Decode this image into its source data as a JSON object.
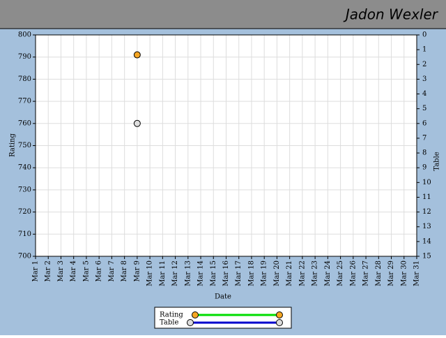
{
  "chart_data": {
    "type": "line",
    "title": "Jadon Wexler",
    "xlabel": "Date",
    "ylabel": "Rating",
    "y2label": "Table",
    "categories": [
      "Mar 1",
      "Mar 2",
      "Mar 3",
      "Mar 4",
      "Mar 5",
      "Mar 6",
      "Mar 7",
      "Mar 8",
      "Mar 9",
      "Mar 10",
      "Mar 11",
      "Mar 12",
      "Mar 13",
      "Mar 14",
      "Mar 15",
      "Mar 16",
      "Mar 17",
      "Mar 18",
      "Mar 19",
      "Mar 20",
      "Mar 21",
      "Mar 22",
      "Mar 23",
      "Mar 24",
      "Mar 25",
      "Mar 26",
      "Mar 27",
      "Mar 28",
      "Mar 29",
      "Mar 30",
      "Mar 31"
    ],
    "series": [
      {
        "name": "Rating",
        "color": "#00dd00",
        "marker_color": "#f5a623",
        "axis": "y",
        "values": [
          null,
          null,
          null,
          null,
          null,
          null,
          null,
          null,
          791,
          null,
          null,
          null,
          null,
          null,
          null,
          null,
          null,
          null,
          null,
          null,
          null,
          null,
          null,
          null,
          null,
          null,
          null,
          null,
          null,
          null,
          null
        ]
      },
      {
        "name": "Table",
        "color": "#0000cc",
        "marker_color": "#dddddd",
        "axis": "y2",
        "values": [
          null,
          null,
          null,
          null,
          null,
          null,
          null,
          null,
          6,
          null,
          null,
          null,
          null,
          null,
          null,
          null,
          null,
          null,
          null,
          null,
          null,
          null,
          null,
          null,
          null,
          null,
          null,
          null,
          null,
          null,
          null
        ]
      }
    ],
    "ylim": [
      700,
      800
    ],
    "yticks": [
      700,
      710,
      720,
      730,
      740,
      750,
      760,
      770,
      780,
      790,
      800
    ],
    "y2lim": [
      0,
      15
    ],
    "y2_reversed": true,
    "y2ticks": [
      0,
      1,
      2,
      3,
      4,
      5,
      6,
      7,
      8,
      9,
      10,
      11,
      12,
      13,
      14,
      15
    ],
    "grid": true,
    "legend": "bottom"
  }
}
